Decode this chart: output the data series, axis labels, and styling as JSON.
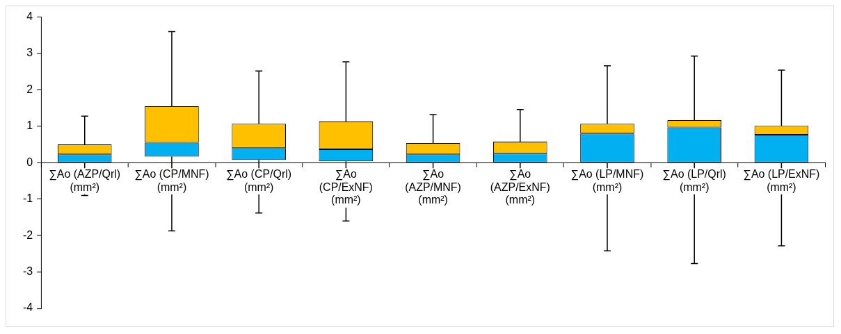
{
  "chart_data": {
    "type": "box",
    "categories": [
      "∑Ao (AZP/Qrl) (mm²)",
      "∑Ao (CP/MNF) (mm²)",
      "∑Ao (CP/Qrl) (mm²)",
      "∑Ao (CP/ExNF) (mm²)",
      "∑Ao (AZP/MNF) (mm²)",
      "∑Ao (AZP/ExNF) (mm²)",
      "∑Ao (LP/MNF) (mm²)",
      "∑Ao (LP/Qrl) (mm²)",
      "∑Ao (LP/ExNF) (mm²)"
    ],
    "series": [
      {
        "color": "#ffc000",
        "boxes": [
          {
            "low": -0.9,
            "q1": 0,
            "median": 0.23,
            "q3": 0.5,
            "high": 1.28
          },
          {
            "low": -1.87,
            "q1": 0.17,
            "median": 0.55,
            "q3": 1.55,
            "high": 3.6
          },
          {
            "low": -1.38,
            "q1": 0.08,
            "median": 0.4,
            "q3": 1.07,
            "high": 2.52
          },
          {
            "low": -1.6,
            "q1": 0.04,
            "median": 0.37,
            "q3": 1.13,
            "high": 2.77
          },
          {
            "low": -0.86,
            "q1": 0,
            "median": 0.23,
            "q3": 0.54,
            "high": 1.32
          },
          {
            "low": -1.1,
            "q1": 0,
            "median": 0.25,
            "q3": 0.58,
            "high": 1.46
          },
          {
            "low": -2.42,
            "q1": 0,
            "median": 0.8,
            "q3": 1.07,
            "high": 2.66
          },
          {
            "low": -2.77,
            "q1": 0,
            "median": 0.97,
            "q3": 1.17,
            "high": 2.93
          },
          {
            "low": -2.28,
            "q1": 0,
            "median": 0.77,
            "q3": 1.01,
            "high": 2.54
          }
        ],
        "colors": [
          "#00b0f0",
          "#00b0f0",
          "#00b0f0",
          "#00b0f0",
          "#00b0f0",
          "#00b0f0",
          "#00b0f0",
          "#00b0f0",
          "#00b0f0"
        ]
      }
    ],
    "ylim": [
      -4,
      4
    ],
    "yticks": [
      -4,
      -3,
      -2,
      -1,
      0,
      1,
      2,
      3,
      4
    ],
    "grid": false,
    "legend": false
  }
}
